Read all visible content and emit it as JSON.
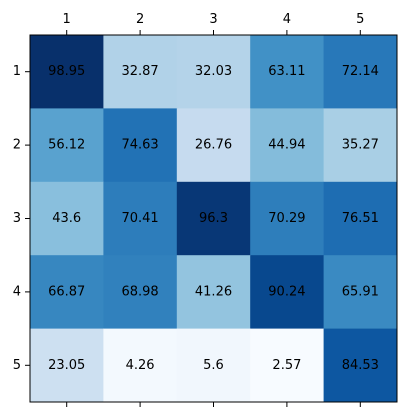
{
  "chart_data": {
    "type": "heatmap",
    "colormap": "Blues",
    "value_range": [
      2.57,
      98.95
    ],
    "x_ticks": [
      "1",
      "2",
      "3",
      "4",
      "5"
    ],
    "y_ticks": [
      "1",
      "2",
      "3",
      "4",
      "5"
    ],
    "x_ticks_position": "top",
    "grid": false,
    "values": [
      [
        98.95,
        32.87,
        32.03,
        63.11,
        72.14
      ],
      [
        56.12,
        74.63,
        26.76,
        44.94,
        35.27
      ],
      [
        43.6,
        70.41,
        96.3,
        70.29,
        76.51
      ],
      [
        66.87,
        68.98,
        41.26,
        90.24,
        65.91
      ],
      [
        23.05,
        4.26,
        5.6,
        2.57,
        84.53
      ]
    ],
    "cell_labels": [
      [
        "98.95",
        "32.87",
        "32.03",
        "63.11",
        "72.14"
      ],
      [
        "56.12",
        "74.63",
        "26.76",
        "44.94",
        "35.27"
      ],
      [
        "43.6",
        "70.41",
        "96.3",
        "70.29",
        "76.51"
      ],
      [
        "66.87",
        "68.98",
        "41.26",
        "90.24",
        "65.91"
      ],
      [
        "23.05",
        "4.26",
        "5.6",
        "2.57",
        "84.53"
      ]
    ]
  }
}
